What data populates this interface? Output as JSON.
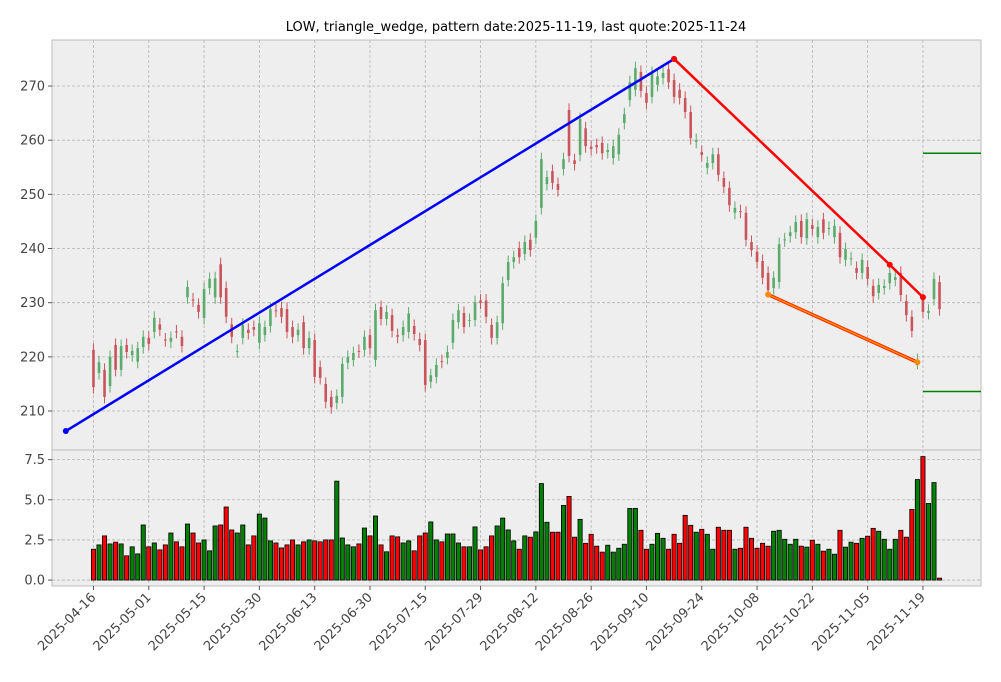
{
  "chart_data": {
    "type": "candlestick",
    "title": "LOW, triangle_wedge, pattern date:2025-11-19, last quote:2025-11-24",
    "x_unit": "trading-day index (1 = 2025-04-16)",
    "xlim": [
      -6.5,
      161.5
    ],
    "x_ticks": [
      {
        "index": 1,
        "label": "2025-04-16"
      },
      {
        "index": 11,
        "label": "2025-05-01"
      },
      {
        "index": 21,
        "label": "2025-05-15"
      },
      {
        "index": 31,
        "label": "2025-05-30"
      },
      {
        "index": 41,
        "label": "2025-06-13"
      },
      {
        "index": 51,
        "label": "2025-06-30"
      },
      {
        "index": 61,
        "label": "2025-07-15"
      },
      {
        "index": 71,
        "label": "2025-07-29"
      },
      {
        "index": 81,
        "label": "2025-08-12"
      },
      {
        "index": 91,
        "label": "2025-08-26"
      },
      {
        "index": 101,
        "label": "2025-09-10"
      },
      {
        "index": 111,
        "label": "2025-09-24"
      },
      {
        "index": 121,
        "label": "2025-10-08"
      },
      {
        "index": 131,
        "label": "2025-10-22"
      },
      {
        "index": 141,
        "label": "2025-11-05"
      },
      {
        "index": 151,
        "label": "2025-11-19"
      }
    ],
    "price_panel": {
      "ylim": [
        202.8,
        278.5
      ],
      "y_ticks": [
        "210",
        "220",
        "230",
        "240",
        "250",
        "260",
        "270"
      ],
      "grid": true,
      "open": [
        221.3,
        217,
        217.6,
        214.6,
        222.2,
        217.6,
        222.2,
        220.3,
        219.1,
        221.8,
        223.5,
        224.6,
        226,
        223.2,
        222.8,
        224.7,
        223.7,
        231,
        230.6,
        229.6,
        227.2,
        232.7,
        231,
        237.1,
        232.7,
        226,
        221,
        223.5,
        225,
        225.5,
        222.6,
        224,
        225.7,
        228.6,
        229,
        228.8,
        225.5,
        224,
        226.4,
        221.6,
        223.1,
        218.1,
        215,
        212.6,
        211.5,
        212.6,
        218.9,
        219.4,
        221.1,
        221.3,
        224,
        219.4,
        229.2,
        227,
        227.7,
        224,
        224,
        224.6,
        225.7,
        223.3,
        223.1,
        215.4,
        216.3,
        219.2,
        219.8,
        222.6,
        226.4,
        228.1,
        226.7,
        226.8,
        230.4,
        230.4,
        225.9,
        223.5,
        226.2,
        234.2,
        237.5,
        240.1,
        239,
        241.6,
        242,
        247.5,
        251.9,
        254.3,
        251.9,
        254.7,
        265.6,
        256.3,
        257.3,
        262.2,
        258.8,
        259.1,
        259.5,
        257.8,
        256.7,
        257.4,
        263.2,
        267.4,
        269.3,
        272.6,
        268.7,
        268,
        270.2,
        271.5,
        273.1,
        271.1,
        269.3,
        267.8,
        265.2,
        259.7,
        257.8,
        254.9,
        255.8,
        257.4,
        253,
        251.2,
        246.6,
        246.9,
        246.6,
        241.2,
        239.4,
        237.7,
        235.5,
        232.7,
        233.8,
        241.5,
        242.3,
        243,
        245.1,
        241.9,
        244.3,
        242.1,
        245.4,
        243.6,
        242.1,
        242.9,
        237.9,
        238.1,
        236.4,
        235.5,
        236.6,
        233.1,
        231.8,
        232.7,
        233.6,
        234.2,
        235.5,
        230.3,
        227.4,
        218.9,
        230.5,
        228.1,
        230.7,
        233.8
      ],
      "close": [
        214.4,
        219,
        212.6,
        220,
        217.6,
        222,
        220.9,
        221.1,
        221.6,
        223.7,
        222.4,
        227.2,
        225,
        223.1,
        223.5,
        224.6,
        222,
        232.9,
        230.4,
        228.3,
        232.5,
        234.4,
        234.5,
        231,
        227.4,
        223.7,
        221.1,
        225.9,
        224.4,
        225,
        226.2,
        225.5,
        228.8,
        228.5,
        227.4,
        224.6,
        223.7,
        225,
        221.6,
        223.5,
        216.3,
        216.1,
        211.7,
        210.7,
        212.8,
        218.7,
        220,
        220.7,
        221,
        223.7,
        221.6,
        228.6,
        227,
        228.3,
        224.8,
        223.7,
        225.5,
        228,
        224.2,
        222.2,
        214.8,
        216.6,
        218.5,
        219.1,
        220.9,
        226.8,
        228.6,
        225.5,
        226.8,
        230.1,
        230,
        227.4,
        223.5,
        226.4,
        233.6,
        237.5,
        238.4,
        238.4,
        241.2,
        239.7,
        245.1,
        256.5,
        253.2,
        252.1,
        250.8,
        256.5,
        257.1,
        255.6,
        263.9,
        258.9,
        258.4,
        258.7,
        257.6,
        258.2,
        258.9,
        261,
        264.8,
        270.7,
        273.3,
        269.1,
        266.9,
        272.4,
        271.8,
        272.4,
        270.7,
        268,
        267.8,
        265.2,
        260.4,
        260,
        257.3,
        255.8,
        257.4,
        253.6,
        251.4,
        248,
        247.5,
        246.8,
        241.6,
        239.7,
        237.5,
        234.6,
        232.3,
        234.6,
        240.8,
        241.7,
        243,
        244.9,
        242.1,
        245.4,
        243.6,
        244,
        242.9,
        243.8,
        244.2,
        238.4,
        239.9,
        238.2,
        235.5,
        237.9,
        234.4,
        231.2,
        233.3,
        233.1,
        235.5,
        234.7,
        231.4,
        227.7,
        224.8,
        219.4,
        228.3,
        228.5,
        234.4,
        228.8
      ],
      "lines": [
        {
          "name": "upper-support-line",
          "color": "#0000ff",
          "points": [
            [
              -4,
              206.3
            ],
            [
              106,
              275
            ]
          ]
        },
        {
          "name": "resistance-line",
          "color": "#ff0000",
          "points": [
            [
              106,
              275
            ],
            [
              145,
              237
            ],
            [
              151,
              231
            ]
          ]
        },
        {
          "name": "lower-wedge-line",
          "color": "#ff8c00",
          "points": [
            [
              123,
              231.5
            ],
            [
              150,
              219
            ]
          ]
        },
        {
          "name": "target-upper-line",
          "color": "#008000",
          "points": [
            [
              151,
              257.6
            ],
            [
              161.5,
              257.6
            ]
          ]
        },
        {
          "name": "target-lower-line",
          "color": "#008000",
          "points": [
            [
              151,
              213.6
            ],
            [
              161.5,
              213.6
            ]
          ]
        }
      ]
    },
    "volume_panel": {
      "ylim": [
        -0.37,
        8.1
      ],
      "y_ticks": [
        "0.0",
        "2.5",
        "5.0",
        "7.5"
      ],
      "values": [
        1.92,
        2.19,
        2.75,
        2.25,
        2.36,
        2.25,
        1.51,
        2.07,
        1.63,
        3.43,
        2.07,
        2.31,
        1.88,
        2.19,
        2.93,
        2.38,
        2.07,
        3.49,
        2.93,
        2.31,
        2.5,
        1.82,
        3.37,
        3.43,
        4.55,
        3.12,
        2.93,
        3.43,
        2.19,
        2.75,
        4.11,
        3.86,
        2.44,
        2.31,
        2.0,
        2.19,
        2.5,
        2.19,
        2.38,
        2.5,
        2.44,
        2.38,
        2.5,
        2.5,
        6.16,
        2.62,
        2.19,
        2.07,
        2.25,
        3.24,
        2.75,
        3.99,
        2.19,
        1.76,
        2.75,
        2.69,
        2.31,
        2.44,
        1.82,
        2.75,
        2.93,
        3.62,
        2.5,
        2.38,
        2.87,
        2.87,
        2.31,
        2.07,
        2.07,
        3.31,
        1.88,
        2.07,
        2.75,
        3.37,
        3.86,
        3.12,
        2.44,
        1.92,
        2.75,
        2.67,
        3.0,
        6.01,
        3.6,
        2.98,
        2.98,
        4.65,
        5.21,
        2.67,
        3.78,
        2.29,
        2.85,
        2.11,
        1.74,
        2.17,
        1.74,
        1.98,
        2.23,
        4.46,
        4.46,
        3.1,
        1.92,
        2.23,
        2.91,
        2.6,
        1.92,
        2.85,
        2.29,
        4.03,
        3.41,
        2.98,
        3.16,
        2.85,
        1.92,
        3.29,
        3.1,
        3.1,
        1.92,
        1.98,
        3.29,
        2.6,
        1.98,
        2.29,
        2.11,
        3.04,
        3.1,
        2.54,
        2.23,
        2.54,
        2.11,
        2.05,
        2.48,
        2.23,
        1.8,
        1.92,
        1.61,
        3.1,
        2.05,
        2.36,
        2.29,
        2.6,
        2.73,
        3.22,
        3.04,
        2.54,
        1.92,
        2.54,
        3.1,
        2.67,
        4.4,
        6.26,
        7.69,
        4.77,
        6.07,
        0.12
      ]
    },
    "colors": {
      "candle_up": "#5aab6c",
      "candle_down": "#c9545c",
      "volume_up": "#008000",
      "volume_down": "#ff0000",
      "panel_bg": "#eeeeee",
      "grid": "#b4b4b4"
    }
  }
}
